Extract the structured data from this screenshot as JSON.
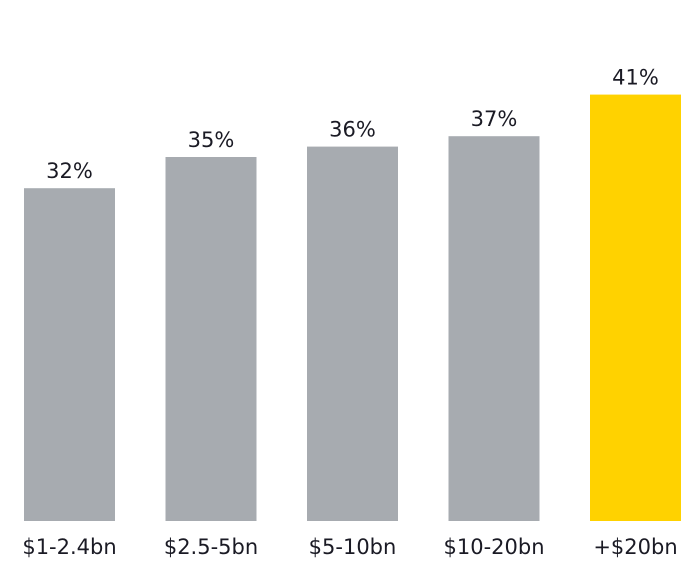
{
  "chart_data": {
    "type": "bar",
    "categories": [
      "$1-2.4bn",
      "$2.5-5bn",
      "$5-10bn",
      "$10-20bn",
      "+$20bn"
    ],
    "values": [
      32,
      35,
      36,
      37,
      41
    ],
    "value_labels": [
      "32%",
      "35%",
      "36%",
      "37%",
      "41%"
    ],
    "colors": [
      "#a7abb0",
      "#a7abb0",
      "#a7abb0",
      "#a7abb0",
      "#ffd200"
    ]
  }
}
